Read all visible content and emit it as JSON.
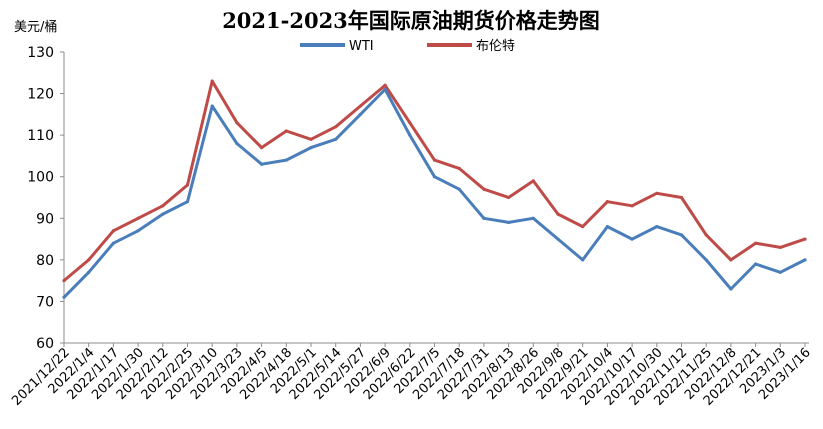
{
  "chart_data": {
    "type": "line",
    "title": "2021-2023年国际原油期货价格走势图",
    "ylabel": "美元/桶",
    "ylim": [
      60,
      130
    ],
    "yticks": [
      60,
      70,
      80,
      90,
      100,
      110,
      120,
      130
    ],
    "grid": false,
    "legend_position": "top-center",
    "categories": [
      "2021/12/22",
      "2022/1/4",
      "2022/1/17",
      "2022/1/30",
      "2022/2/12",
      "2022/2/25",
      "2022/3/10",
      "2022/3/23",
      "2022/4/5",
      "2022/4/18",
      "2022/5/1",
      "2022/5/14",
      "2022/5/27",
      "2022/6/9",
      "2022/6/22",
      "2022/7/5",
      "2022/7/18",
      "2022/7/31",
      "2022/8/13",
      "2022/8/26",
      "2022/9/8",
      "2022/9/21",
      "2022/10/4",
      "2022/10/17",
      "2022/10/30",
      "2022/11/12",
      "2022/11/25",
      "2022/12/8",
      "2022/12/21",
      "2023/1/3",
      "2023/1/16"
    ],
    "series": [
      {
        "name": "WTI",
        "color": "#4a7ebb",
        "values": [
          71,
          77,
          84,
          87,
          91,
          94,
          117,
          108,
          103,
          104,
          107,
          109,
          115,
          121,
          110,
          100,
          97,
          90,
          89,
          90,
          85,
          80,
          88,
          85,
          88,
          86,
          80,
          73,
          79,
          77,
          80
        ]
      },
      {
        "name": "布伦特",
        "color": "#be4b48",
        "values": [
          75,
          80,
          87,
          90,
          93,
          98,
          123,
          113,
          107,
          111,
          109,
          112,
          117,
          122,
          113,
          104,
          102,
          97,
          95,
          99,
          91,
          88,
          94,
          93,
          96,
          95,
          86,
          80,
          84,
          83,
          85
        ]
      }
    ]
  }
}
